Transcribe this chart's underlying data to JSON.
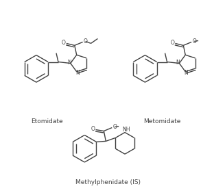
{
  "background_color": "#ffffff",
  "label_etomidate": "Etomidate",
  "label_metomidate": "Metomidate",
  "label_methylphenidate": "Methylphenidate (IS)",
  "line_color": "#404040",
  "line_width": 1.0,
  "font_size": 6.5
}
